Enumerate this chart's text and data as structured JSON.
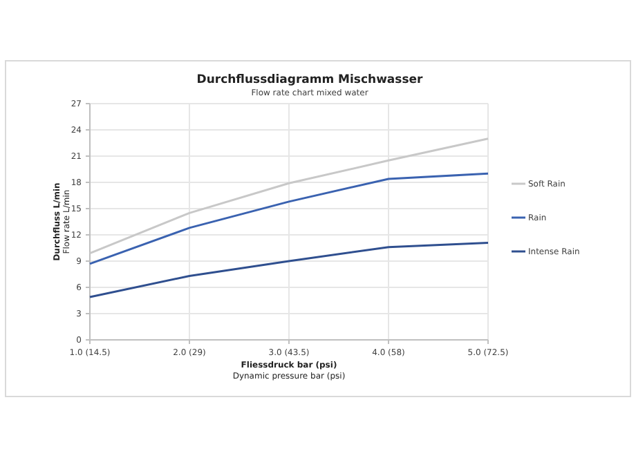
{
  "chart_data": {
    "type": "line",
    "title": "Durchflussdiagramm Mischwasser",
    "subtitle": "Flow rate chart mixed water",
    "xlabel": "Fliessdruck bar (psi)\nDynamic pressure bar (psi)",
    "ylabel": "Durchfluss L/min\nFlow rate L/min",
    "categories": [
      "1.0 (14.5)",
      "2.0 (29)",
      "3.0 (43.5)",
      "4.0 (58)",
      "5.0 (72.5)"
    ],
    "ylim": [
      0,
      27
    ],
    "yticks": [
      0,
      3,
      6,
      9,
      12,
      15,
      18,
      21,
      24,
      27
    ],
    "grid": true,
    "legend": "right",
    "marker": "none",
    "line_style": "solid",
    "series": [
      {
        "name": "Soft Rain",
        "color": "#c8c8c8",
        "values": [
          9.9,
          14.5,
          17.9,
          20.5,
          23.0
        ]
      },
      {
        "name": "Rain",
        "color": "#3a62b0",
        "values": [
          8.7,
          12.8,
          15.8,
          18.4,
          19.0
        ]
      },
      {
        "name": "Intense Rain",
        "color": "#2f4f8f",
        "values": [
          4.9,
          7.3,
          9.0,
          10.6,
          11.1
        ]
      }
    ]
  }
}
